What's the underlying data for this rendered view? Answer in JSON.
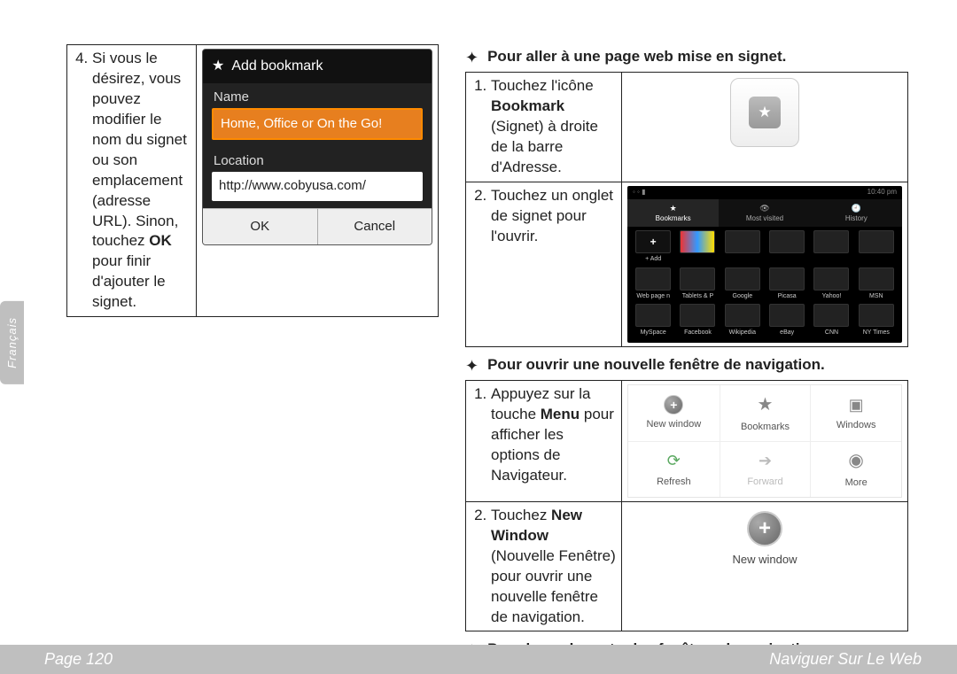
{
  "side_tab": "Français",
  "footer": {
    "left": "Page 120",
    "right": "Naviguer Sur Le Web"
  },
  "left": {
    "step4_prefix": "Si vous le désirez, vous pouvez modifier le nom du signet ou son emplacement (adresse URL). Sinon, touchez ",
    "step4_bold": "OK",
    "step4_suffix": " pour finir d'ajouter le signet.",
    "dialog": {
      "title": "Add bookmark",
      "name_label": "Name",
      "name_value": "Home, Office or On the Go!",
      "loc_label": "Location",
      "loc_value": "http://www.cobyusa.com/",
      "ok": "OK",
      "cancel": "Cancel"
    }
  },
  "sec1": {
    "heading": "Pour aller à une page web mise en signet.",
    "step1_a": "Touchez l'icône ",
    "step1_b": "Bookmark",
    "step1_c": " (Signet) à droite de la barre d'Adresse.",
    "step2": "Touchez un onglet de signet pour l'ouvrir.",
    "screen": {
      "time": "10:40 pm",
      "tabs": {
        "bookmarks": "Bookmarks",
        "most": "Most visited",
        "history": "History"
      },
      "cells": [
        "+ Add",
        "",
        "",
        "",
        "",
        "",
        "Web page n",
        "Tablets & P",
        "Google",
        "Picasa",
        "Yahoo!",
        "MSN",
        "MySpace",
        "Facebook",
        "Wikipedia",
        "eBay",
        "CNN",
        "NY Times"
      ]
    }
  },
  "sec2": {
    "heading": "Pour ouvrir une nouvelle fenêtre de navigation.",
    "step1_a": "Appuyez sur la touche ",
    "step1_b": "Menu",
    "step1_c": " pour afficher les options de Navigateur.",
    "step2_a": "Touchez ",
    "step2_b": "New Window",
    "step2_c": " (Nouvelle Fenêtre) pour ouvrir une nouvelle fenêtre de navigation.",
    "menu": {
      "new_window": "New window",
      "bookmarks": "Bookmarks",
      "windows": "Windows",
      "refresh": "Refresh",
      "forward": "Forward",
      "more": "More"
    },
    "nw_label": "New window"
  },
  "sec3": {
    "heading": "Pour basculer entre les fenêtres de navigation."
  },
  "colors": {
    "accent": "#e77f1f",
    "footer_bg": "#bfbfbf"
  }
}
